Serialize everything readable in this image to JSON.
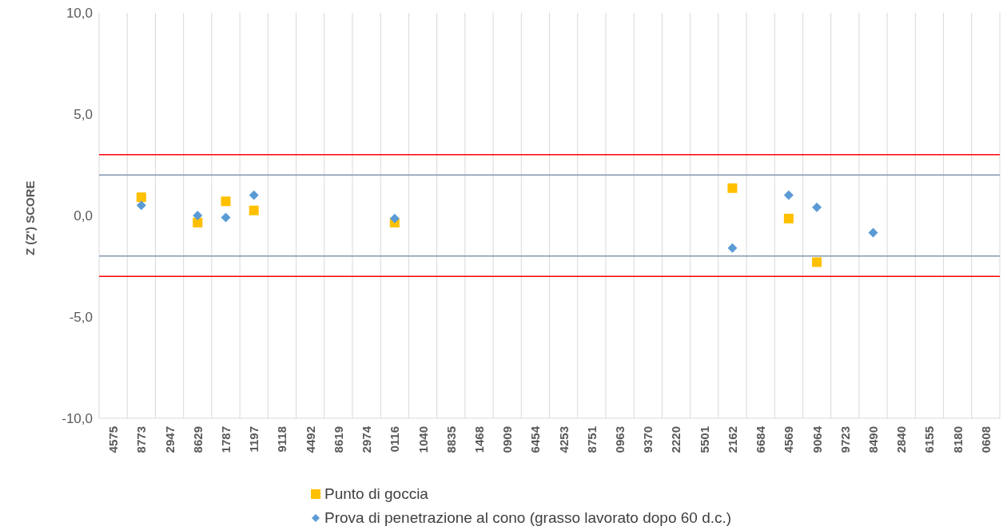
{
  "chart_data": {
    "type": "scatter",
    "ylabel": "Z (Z') SCORE",
    "categories": [
      "4575",
      "8773",
      "2947",
      "8629",
      "1787",
      "1197",
      "9118",
      "4492",
      "8619",
      "2974",
      "0116",
      "1040",
      "8835",
      "1468",
      "0909",
      "6454",
      "4253",
      "8751",
      "0963",
      "9370",
      "2220",
      "5501",
      "2162",
      "6684",
      "4569",
      "9064",
      "9723",
      "8490",
      "2840",
      "6155",
      "8180",
      "0608"
    ],
    "series": [
      {
        "name": "Punto di goccia",
        "color": "#ffc000",
        "marker": "square",
        "values": [
          null,
          0.9,
          null,
          -0.35,
          0.7,
          0.25,
          null,
          null,
          null,
          null,
          -0.35,
          null,
          null,
          null,
          null,
          null,
          null,
          null,
          null,
          null,
          null,
          null,
          1.35,
          null,
          -0.15,
          -2.3,
          null,
          null,
          null,
          null,
          null,
          null
        ]
      },
      {
        "name": "Prova di penetrazione al cono (grasso lavorato dopo 60 d.c.)",
        "color": "#5b9bd5",
        "marker": "diamond",
        "values": [
          null,
          0.5,
          null,
          0.0,
          -0.1,
          1.0,
          null,
          null,
          null,
          null,
          -0.15,
          null,
          null,
          null,
          null,
          null,
          null,
          null,
          null,
          null,
          null,
          null,
          -1.6,
          null,
          1.0,
          0.4,
          null,
          -0.85,
          null,
          null,
          null,
          null
        ]
      }
    ],
    "ylim": [
      -10,
      10
    ],
    "yticks": [
      {
        "value": -10,
        "label": "-10,0"
      },
      {
        "value": -5,
        "label": "-5,0"
      },
      {
        "value": 0,
        "label": "0,0"
      },
      {
        "value": 5,
        "label": "5,0"
      },
      {
        "value": 10,
        "label": "10,0"
      }
    ],
    "ref_lines": [
      {
        "axis": "y",
        "value": 3,
        "color": "#ff0000"
      },
      {
        "axis": "y",
        "value": -3,
        "color": "#ff0000"
      },
      {
        "axis": "y",
        "value": 2,
        "color": "#8497b0"
      },
      {
        "axis": "y",
        "value": -2,
        "color": "#8497b0"
      }
    ],
    "grid": "x",
    "legend": "bottom"
  }
}
